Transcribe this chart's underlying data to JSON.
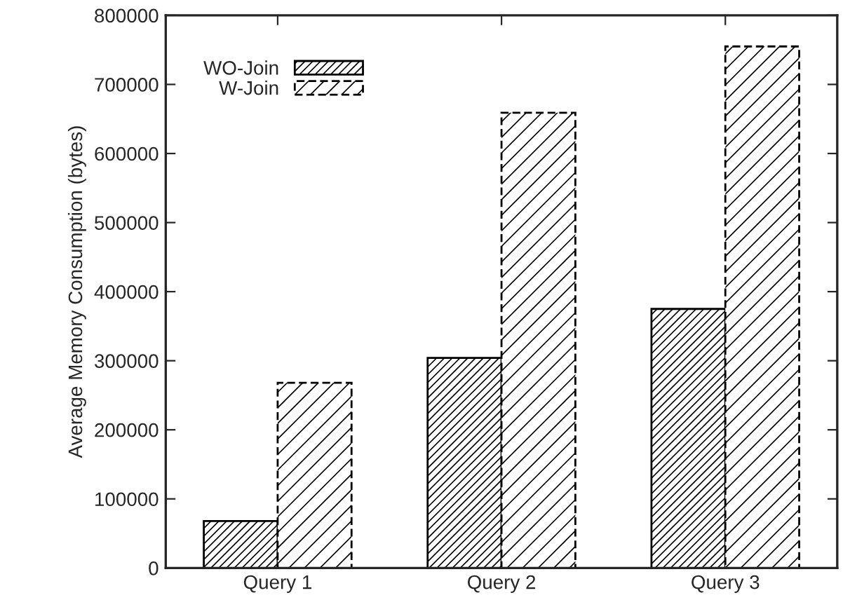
{
  "chart_data": {
    "type": "bar",
    "ylabel": "Average Memory Consumption (bytes)",
    "categories": [
      "Query 1",
      "Query 2",
      "Query 3"
    ],
    "series": [
      {
        "name": "WO-Join",
        "color": "#000000",
        "line_style": "solid",
        "values": [
          68000,
          304000,
          375000
        ]
      },
      {
        "name": "W-Join",
        "color": "#000000",
        "line_style": "dashed",
        "values": [
          268000,
          659000,
          755000
        ]
      }
    ],
    "ylim": [
      0,
      800000
    ],
    "yticks": [
      0,
      100000,
      200000,
      300000,
      400000,
      500000,
      600000,
      700000,
      800000
    ],
    "legend": "top left",
    "grid": false
  }
}
